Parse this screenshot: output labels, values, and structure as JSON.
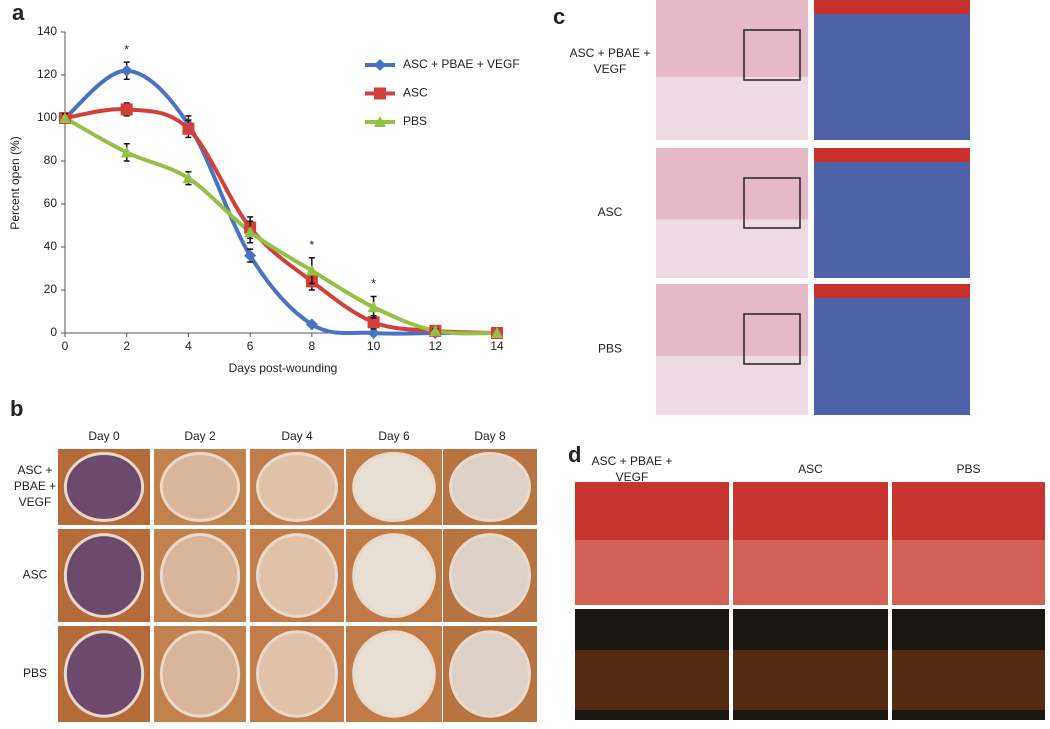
{
  "chart_data": {
    "type": "line",
    "panel_label": "a",
    "xlabel": "Days post-wounding",
    "ylabel": "Percent open (%)",
    "x": [
      0,
      2,
      4,
      6,
      8,
      10,
      12,
      14
    ],
    "xlim": [
      0,
      14
    ],
    "xticks": [
      0,
      2,
      4,
      6,
      8,
      10,
      12,
      14
    ],
    "ylim": [
      0,
      140
    ],
    "yticks": [
      0,
      20,
      40,
      60,
      80,
      100,
      120,
      140
    ],
    "legend": "upper right",
    "series": [
      {
        "name": "ASC + PBAE + VEGF",
        "color": "#4a72c4",
        "marker": "diamond",
        "values": [
          100,
          122,
          97,
          36,
          4,
          0,
          0,
          0
        ],
        "errors": [
          2,
          4,
          4,
          3,
          1,
          0,
          0,
          0
        ]
      },
      {
        "name": "ASC",
        "color": "#d2403c",
        "marker": "square",
        "values": [
          100,
          104,
          95,
          49,
          24,
          5,
          1,
          0
        ],
        "errors": [
          2,
          3,
          4,
          5,
          4,
          3,
          1,
          0
        ]
      },
      {
        "name": "PBS",
        "color": "#94c046",
        "marker": "triangle",
        "values": [
          100,
          84,
          72,
          47,
          29,
          12,
          1,
          0
        ],
        "errors": [
          2,
          4,
          3,
          5,
          6,
          5,
          1,
          0
        ]
      }
    ],
    "annotations": [
      {
        "x": 2,
        "text": "*"
      },
      {
        "x": 8,
        "text": "*"
      },
      {
        "x": 10,
        "text": "*"
      }
    ]
  },
  "panel_b": {
    "label": "b",
    "columns": [
      "Day 0",
      "Day 2",
      "Day 4",
      "Day 6",
      "Day 8"
    ],
    "rows": [
      [
        "ASC +",
        "PBAE +",
        "VEGF"
      ],
      [
        "ASC"
      ],
      [
        "PBS"
      ]
    ]
  },
  "panel_c": {
    "label": "c",
    "rows": [
      [
        "ASC + PBAE +",
        "VEGF"
      ],
      [
        "ASC"
      ],
      [
        "PBS"
      ]
    ]
  },
  "panel_d": {
    "label": "d",
    "columns": [
      [
        "ASC + PBAE +",
        "VEGF"
      ],
      [
        "ASC"
      ],
      [
        "PBS"
      ]
    ]
  }
}
